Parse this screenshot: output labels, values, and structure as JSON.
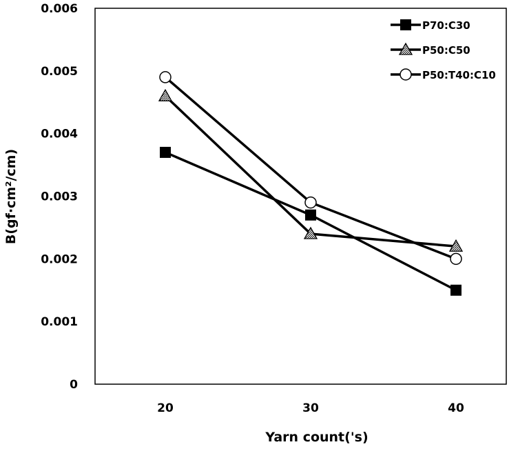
{
  "chart_data": {
    "type": "line",
    "title": "",
    "xlabel": "Yarn count('s)",
    "ylabel": "B(gf·cm²/cm)",
    "categories": [
      "20",
      "30",
      "40"
    ],
    "ylim": [
      0,
      0.006
    ],
    "yticks": [
      "0",
      "0.001",
      "0.002",
      "0.003",
      "0.004",
      "0.005",
      "0.006"
    ],
    "grid": false,
    "legend_position": "top-right",
    "series": [
      {
        "name": "P70:C30",
        "marker": "filled-square",
        "values": [
          0.0037,
          0.0027,
          0.0015
        ]
      },
      {
        "name": "P50:C50",
        "marker": "hatched-triangle",
        "values": [
          0.0046,
          0.0024,
          0.0022
        ]
      },
      {
        "name": "P50:T40:C10",
        "marker": "open-circle",
        "values": [
          0.0049,
          0.0029,
          0.002
        ]
      }
    ]
  }
}
